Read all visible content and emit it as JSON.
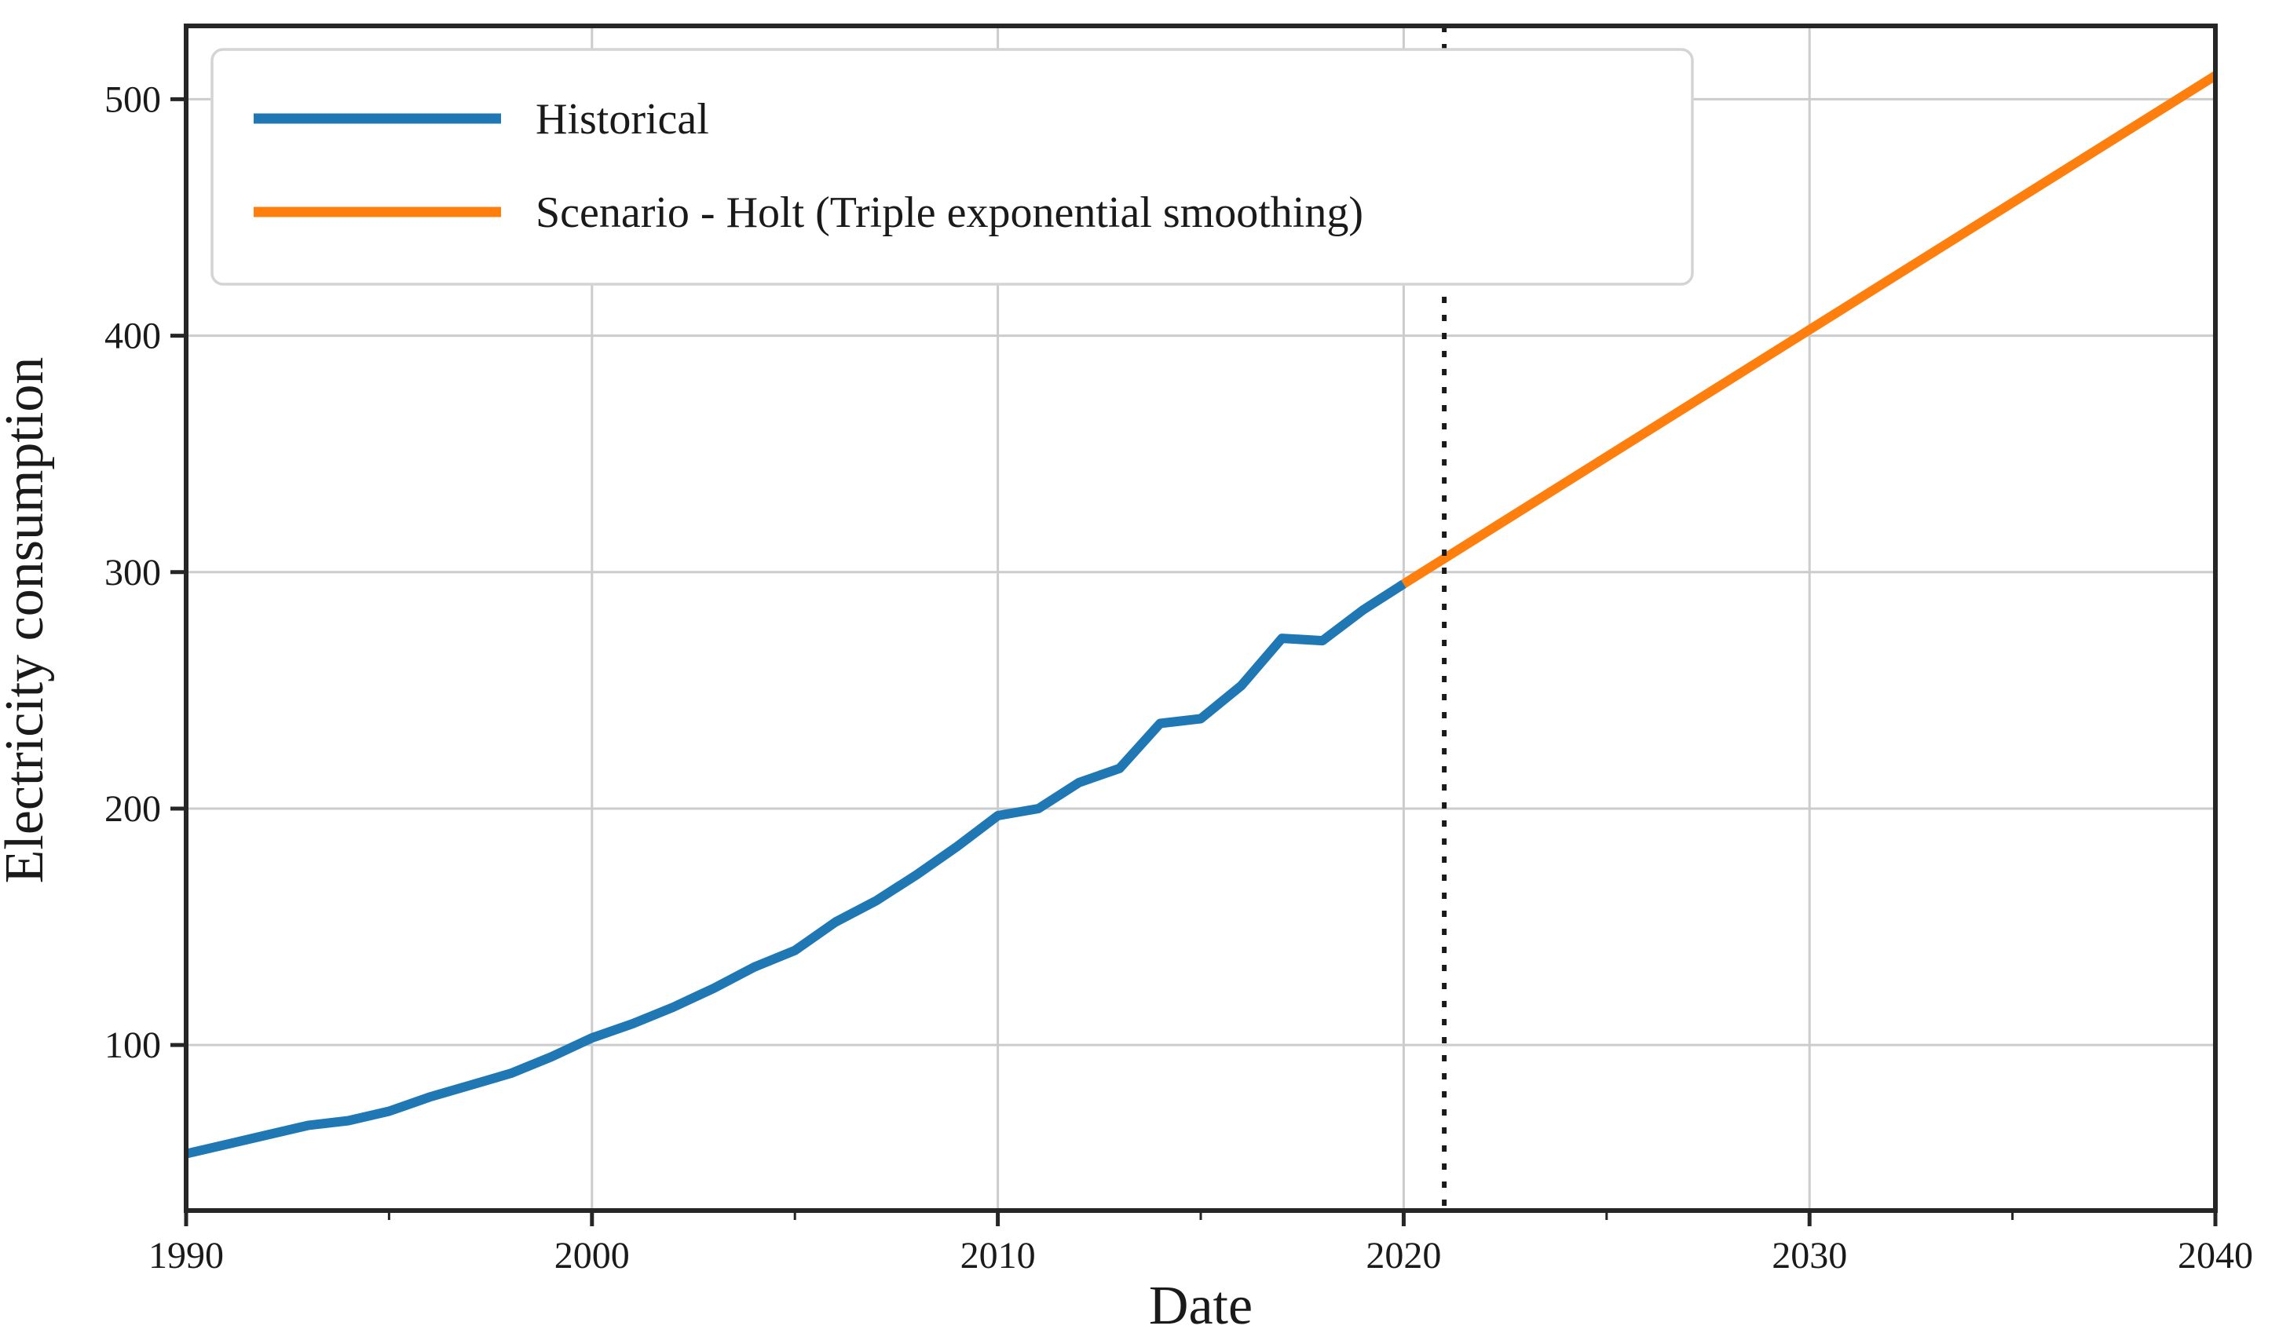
{
  "figure": {
    "background": "#ffffff",
    "frame_color": "#262626",
    "grid_color": "#cccccc",
    "text_color": "#1a1a1a",
    "legend": {
      "position": "upper left",
      "border_color": "#d4d4d4",
      "fill": "#ffffff",
      "entries": [
        {
          "label": "Historical",
          "color": "#1f77b4"
        },
        {
          "label": "Scenario - Holt (Triple exponential smoothing)",
          "color": "#ff7f0e"
        }
      ]
    }
  },
  "chart_data": {
    "type": "line",
    "title": "",
    "xlabel": "Date",
    "ylabel": "Electricity consumption",
    "xlim": [
      1990,
      2040
    ],
    "ylim": [
      30,
      531
    ],
    "x_ticks": [
      1990,
      2000,
      2010,
      2020,
      2030,
      2040
    ],
    "x_minor_ticks": [
      1995,
      2005,
      2015,
      2025,
      2035
    ],
    "y_ticks": [
      100,
      200,
      300,
      400,
      500
    ],
    "grid": true,
    "legend_position": "upper left",
    "series": [
      {
        "name": "Historical",
        "color": "#1f77b4",
        "linewidth": 12,
        "x": [
          1990,
          1991,
          1992,
          1993,
          1994,
          1995,
          1996,
          1997,
          1998,
          1999,
          2000,
          2001,
          2002,
          2003,
          2004,
          2005,
          2006,
          2007,
          2008,
          2009,
          2010,
          2011,
          2012,
          2013,
          2014,
          2015,
          2016,
          2017,
          2018,
          2019,
          2020
        ],
        "values": [
          54,
          58,
          62,
          66,
          68,
          72,
          78,
          83,
          88,
          95,
          103,
          109,
          116,
          124,
          133,
          140,
          152,
          161,
          172,
          184,
          197,
          200,
          211,
          217,
          236,
          238,
          252,
          272,
          271,
          284,
          295
        ]
      },
      {
        "name": "Scenario - Holt (Triple exponential smoothing)",
        "color": "#ff7f0e",
        "linewidth": 12,
        "x": [
          2020,
          2030,
          2040
        ],
        "values": [
          295,
          402.5,
          510
        ]
      }
    ],
    "annotations": [
      {
        "type": "vline",
        "x": 2021,
        "linestyle": "dotted",
        "color": "#1a1a1a"
      }
    ]
  }
}
